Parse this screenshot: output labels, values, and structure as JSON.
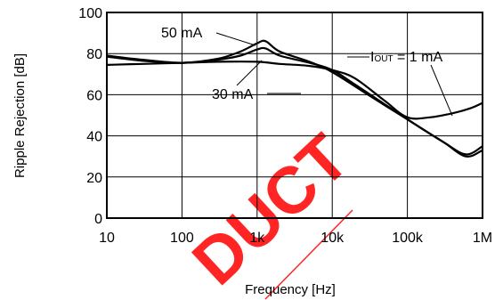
{
  "chart_data": {
    "type": "line",
    "xlabel": "Frequency [Hz]",
    "ylabel": "Ripple Rejection [dB]",
    "xscale": "log",
    "xlim": [
      10,
      1000000
    ],
    "ylim": [
      0,
      100
    ],
    "grid": true,
    "x_ticks": [
      10,
      100,
      1000,
      10000,
      100000,
      1000000
    ],
    "x_tick_labels": [
      "10",
      "100",
      "1k",
      "10k",
      "100k",
      "1M"
    ],
    "y_ticks": [
      0,
      20,
      40,
      60,
      80,
      100
    ],
    "y_tick_labels": [
      "0",
      "20",
      "40",
      "60",
      "80",
      "100"
    ],
    "series": [
      {
        "name": "50 mA",
        "x": [
          10,
          30,
          100,
          300,
          600,
          1000,
          1300,
          2000,
          5000,
          10000,
          30000,
          100000,
          300000,
          600000,
          1000000
        ],
        "y": [
          78.5,
          76.5,
          75.5,
          77.5,
          81,
          85,
          86,
          81,
          76,
          71,
          60,
          48,
          37,
          31,
          35
        ]
      },
      {
        "name": "30 mA",
        "x": [
          10,
          30,
          100,
          300,
          600,
          1000,
          1300,
          2000,
          5000,
          10000,
          20000,
          100000,
          300000,
          600000,
          1000000
        ],
        "y": [
          79,
          77,
          75.5,
          77,
          79,
          82,
          82.5,
          79,
          75.5,
          72,
          65,
          48,
          37,
          30,
          33
        ]
      },
      {
        "name": "IOUT = 1 mA",
        "x": [
          10,
          30,
          100,
          300,
          1000,
          2000,
          5000,
          10000,
          20000,
          50000,
          100000,
          200000,
          400000,
          700000,
          1000000
        ],
        "y": [
          74.5,
          75,
          75.5,
          76,
          76,
          75,
          74,
          72,
          68,
          57,
          49,
          49,
          51,
          53.5,
          56
        ]
      }
    ],
    "annotations": [
      {
        "series": "50 mA",
        "label": "50 mA"
      },
      {
        "series": "30 mA",
        "label": "30 mA"
      },
      {
        "series": "IOUT = 1 mA",
        "label_main": "I",
        "label_sub": "OUT",
        "label_rest": " = 1 mA"
      }
    ]
  },
  "watermark": {
    "text": "DUCT",
    "color": "#ff1a1a"
  }
}
